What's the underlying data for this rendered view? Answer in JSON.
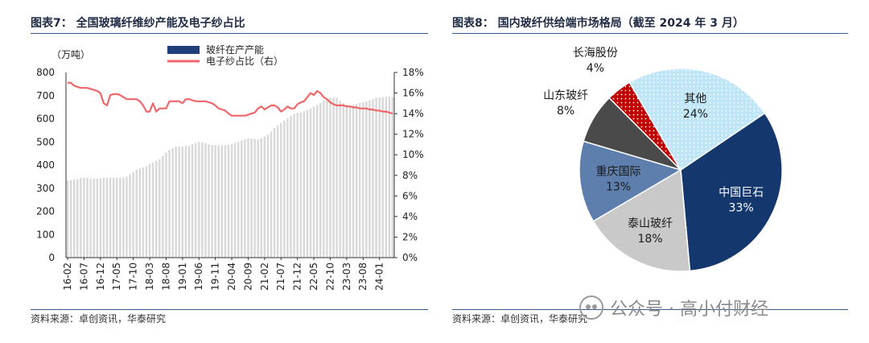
{
  "left": {
    "title": "图表7： 全国玻璃纤维纱产能及电子纱占比",
    "source": "资料来源：卓创资讯，华泰研究",
    "chart_data": {
      "type": "bar",
      "y_unit": "（万吨）",
      "ylim": [
        0,
        800
      ],
      "y_ticks": [
        "0",
        "100",
        "200",
        "300",
        "400",
        "500",
        "600",
        "700",
        "800"
      ],
      "y2lim": [
        0,
        18
      ],
      "y2_ticks": [
        "0%",
        "2%",
        "4%",
        "6%",
        "8%",
        "10%",
        "12%",
        "14%",
        "16%",
        "18%"
      ],
      "x_ticks": [
        "16-02",
        "16-07",
        "16-12",
        "17-05",
        "17-10",
        "18-03",
        "18-08",
        "19-01",
        "19-06",
        "19-11",
        "20-04",
        "20-09",
        "21-02",
        "21-07",
        "21-12",
        "22-05",
        "22-10",
        "23-03",
        "23-08",
        "24-01"
      ],
      "legend": "top-center",
      "series": [
        {
          "name": "玻纤在产产能",
          "kind": "bar",
          "color": "#d9d9d9",
          "legend_color": "#1f3f7a",
          "values": [
            333,
            335,
            338,
            340,
            345,
            345,
            345,
            340,
            342,
            342,
            343,
            345,
            345,
            346,
            346,
            345,
            345,
            346,
            350,
            360,
            370,
            380,
            386,
            390,
            395,
            405,
            412,
            418,
            425,
            440,
            455,
            465,
            472,
            478,
            480,
            480,
            482,
            484,
            490,
            496,
            500,
            498,
            494,
            490,
            487,
            486,
            485,
            485,
            486,
            488,
            492,
            496,
            500,
            506,
            512,
            515,
            514,
            512,
            510,
            515,
            523,
            532,
            545,
            560,
            572,
            582,
            592,
            602,
            612,
            622,
            625,
            628,
            632,
            638,
            645,
            652,
            660,
            668,
            678,
            682,
            690,
            690,
            690,
            678,
            668,
            660,
            658,
            660,
            664,
            668,
            672,
            675,
            680,
            685,
            690,
            692,
            693,
            694,
            695,
            694
          ]
        },
        {
          "name": "电子纱占比（右）",
          "kind": "line",
          "color": "#f0666b",
          "values": [
            17.0,
            17.0,
            16.7,
            16.6,
            16.5,
            16.5,
            16.5,
            16.4,
            16.3,
            16.2,
            16.0,
            15.0,
            14.8,
            15.8,
            15.9,
            15.9,
            15.8,
            15.6,
            15.4,
            15.4,
            15.4,
            15.4,
            15.2,
            14.8,
            14.2,
            14.2,
            15.0,
            14.2,
            14.5,
            14.5,
            14.5,
            15.2,
            15.2,
            15.2,
            15.2,
            15.0,
            15.4,
            15.4,
            15.3,
            15.2,
            15.2,
            15.2,
            15.2,
            15.1,
            15.0,
            14.8,
            14.5,
            14.4,
            14.3,
            14.0,
            13.8,
            13.8,
            13.8,
            13.8,
            13.8,
            13.9,
            14.0,
            14.1,
            14.5,
            14.7,
            14.4,
            14.6,
            14.8,
            14.8,
            14.6,
            14.2,
            14.4,
            14.7,
            14.5,
            14.5,
            14.9,
            15.1,
            15.2,
            15.6,
            16.0,
            15.8,
            16.2,
            16.0,
            15.6,
            15.4,
            15.1,
            14.9,
            14.8,
            14.8,
            14.8,
            14.7,
            14.7,
            14.6,
            14.6,
            14.5,
            14.5,
            14.5,
            14.4,
            14.4,
            14.3,
            14.3,
            14.2,
            14.2,
            14.1,
            14.0
          ]
        }
      ]
    }
  },
  "right": {
    "title": "图表8： 国内玻纤供给端市场格局（截至 2024 年 3 月）",
    "source": "资料来源：卓创资讯，华泰研究",
    "chart_data": {
      "type": "pie",
      "slices": [
        {
          "label": "中国巨石",
          "value": 33,
          "pct": "33%",
          "color": "#14386e",
          "label_color": "#ffffff",
          "pattern": "solid"
        },
        {
          "label": "泰山玻纤",
          "value": 18,
          "pct": "18%",
          "color": "#c9c9c9",
          "label_color": "#1a1a1a",
          "pattern": "solid"
        },
        {
          "label": "重庆国际",
          "value": 13,
          "pct": "13%",
          "color": "#5e7fae",
          "label_color": "#1a1a1a",
          "pattern": "solid"
        },
        {
          "label": "山东玻纤",
          "value": 8,
          "pct": "8%",
          "color": "#4a4a4a",
          "label_color": "#1a1a1a",
          "pattern": "solid"
        },
        {
          "label": "长海股份",
          "value": 4,
          "pct": "4%",
          "color": "#c00000",
          "label_color": "#1a1a1a",
          "pattern": "dots"
        },
        {
          "label": "其他",
          "value": 24,
          "pct": "24%",
          "color": "#bfe6f7",
          "label_color": "#1a1a1a",
          "pattern": "dots-light"
        }
      ]
    }
  },
  "watermark": "公众号 · 高小付财经"
}
